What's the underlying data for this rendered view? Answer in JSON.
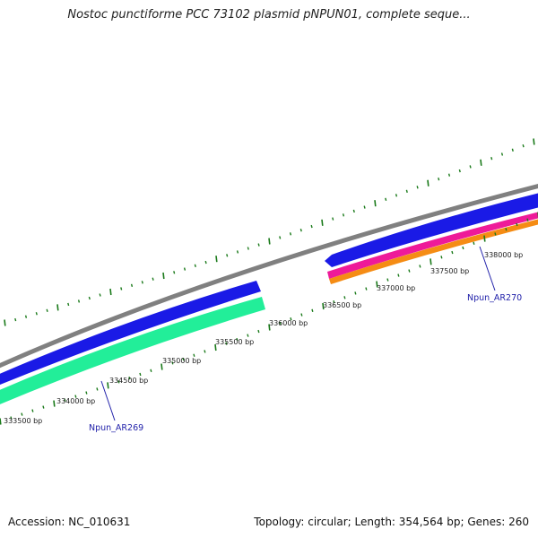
{
  "title": "Nostoc punctiforme PCC 73102 plasmid pNPUN01, complete seque...",
  "footer": {
    "accession": "Accession: NC_010631",
    "summary": "Topology: circular; Length: 354,564 bp; Genes: 260"
  },
  "colors": {
    "backbone": "#808080",
    "forward_gene": "#1a1ae6",
    "reverse_gene_teal": "#22ee99",
    "reverse_gene_pink": "#ee1a99",
    "reverse_gene_orange": "#f58c14",
    "tick": "#1a7a1a",
    "gene_label": "#2222aa"
  },
  "tick_labels": [
    "333500 bp",
    "334000 bp",
    "334500 bp",
    "335000 bp",
    "335500 bp",
    "336000 bp",
    "336500 bp",
    "337000 bp",
    "337500 bp",
    "338000 bp"
  ],
  "gene_labels": [
    "Npun_AR269",
    "Npun_AR270"
  ]
}
